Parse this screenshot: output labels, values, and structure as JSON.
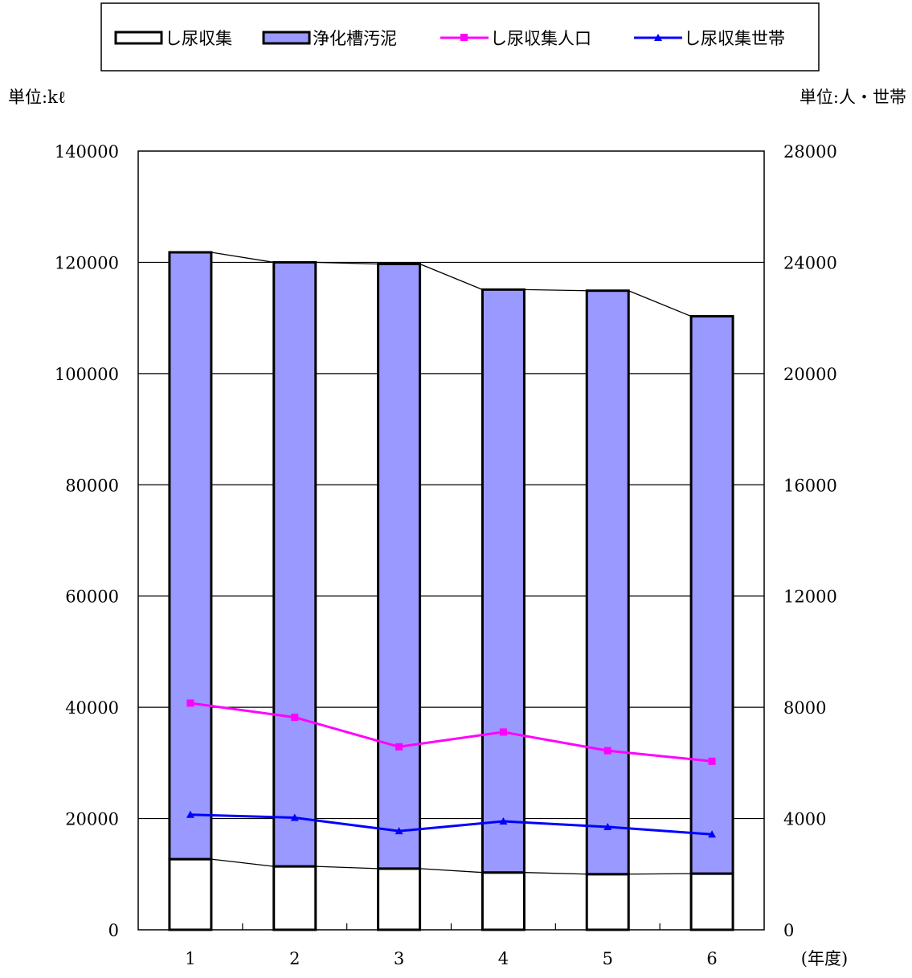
{
  "chart_data": {
    "type": "bar",
    "stacked": true,
    "categories": [
      "1",
      "2",
      "3",
      "4",
      "5",
      "6"
    ],
    "xlabel": "(年度)",
    "y_left_unit": "単位:kℓ",
    "y_right_unit": "単位:人・世帯",
    "ylim_left": [
      0,
      140000
    ],
    "ylim_right": [
      0,
      28000
    ],
    "yticks_left": [
      "0",
      "20000",
      "40000",
      "60000",
      "80000",
      "100000",
      "120000",
      "140000"
    ],
    "yticks_right": [
      "0",
      "4000",
      "8000",
      "12000",
      "16000",
      "20000",
      "24000",
      "28000"
    ],
    "grid": true,
    "legend_position": "top",
    "series": [
      {
        "name": "し尿収集",
        "type": "bar",
        "axis": "left",
        "color": "#ffffff",
        "values": [
          12700,
          11400,
          11000,
          10300,
          10000,
          10100
        ]
      },
      {
        "name": "浄化槽汚泥",
        "type": "bar",
        "axis": "left",
        "color": "#9999ff",
        "values": [
          109100,
          108600,
          108700,
          104800,
          104900,
          100200
        ]
      },
      {
        "name": "し尿収集人口",
        "type": "line",
        "axis": "right",
        "color": "#ff00ff",
        "marker": "square",
        "values": [
          8150,
          7640,
          6580,
          7110,
          6440,
          6060
        ]
      },
      {
        "name": "し尿収集世帯",
        "type": "line",
        "axis": "right",
        "color": "#0000ff",
        "marker": "triangle",
        "values": [
          4140,
          4030,
          3550,
          3900,
          3700,
          3430
        ]
      }
    ]
  }
}
